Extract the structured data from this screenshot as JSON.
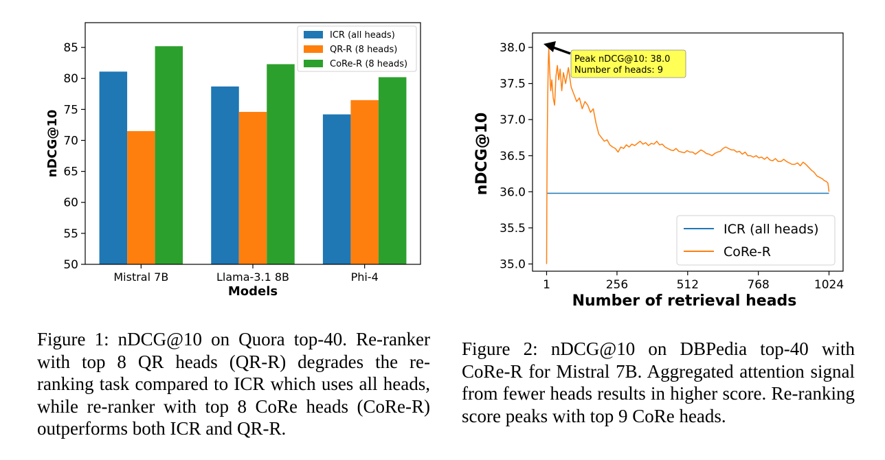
{
  "figure1": {
    "chart_data": {
      "type": "bar",
      "categories": [
        "Mistral 7B",
        "Llama-3.1 8B",
        "Phi-4"
      ],
      "series": [
        {
          "name": "ICR (all heads)",
          "values": [
            81.1,
            78.7,
            74.2
          ]
        },
        {
          "name": "QR-R (8 heads)",
          "values": [
            71.5,
            74.6,
            76.5
          ]
        },
        {
          "name": "CoRe-R (8 heads)",
          "values": [
            85.2,
            82.3,
            80.2
          ]
        }
      ],
      "xlabel": "Models",
      "ylabel": "nDCG@10",
      "ylim": [
        50,
        89
      ],
      "yticks": [
        50,
        55,
        60,
        65,
        70,
        75,
        80,
        85
      ],
      "legend_position": "top-right",
      "colors": [
        "#1f77b4",
        "#ff7f0e",
        "#2ca02c"
      ],
      "grid": false
    },
    "caption": "Figure 1: nDCG@10 on Quora top-40. Re-ranker with top 8 QR heads (QR-R) degrades the re-ranking task compared to ICR which uses all heads, while re-ranker with top 8 CoRe heads (CoRe-R) outperforms both ICR and QR-R."
  },
  "figure2": {
    "chart_data": {
      "type": "line",
      "xlabel": "Number of retrieval heads",
      "ylabel": "nDCG@10",
      "xticks": [
        1,
        256,
        512,
        768,
        1024
      ],
      "yticks": [
        35.0,
        35.5,
        36.0,
        36.5,
        37.0,
        37.5,
        38.0
      ],
      "xlim": [
        -50,
        1075
      ],
      "ylim": [
        34.9,
        38.2
      ],
      "legend_position": "lower-right",
      "grid": false,
      "series": [
        {
          "name": "ICR (all heads)",
          "color": "#1f77b4",
          "x": [
            1,
            1024
          ],
          "y": [
            35.98,
            35.98
          ]
        },
        {
          "name": "CoRe-R",
          "color": "#ff7f0e",
          "x": [
            1,
            2,
            3,
            5,
            7,
            9,
            12,
            16,
            20,
            25,
            30,
            35,
            40,
            45,
            50,
            56,
            62,
            70,
            80,
            90,
            100,
            110,
            120,
            130,
            140,
            150,
            160,
            170,
            180,
            190,
            200,
            210,
            220,
            230,
            240,
            250,
            260,
            270,
            280,
            290,
            300,
            310,
            320,
            330,
            340,
            350,
            360,
            370,
            380,
            390,
            400,
            410,
            420,
            430,
            440,
            450,
            460,
            470,
            480,
            490,
            500,
            510,
            520,
            530,
            540,
            550,
            560,
            570,
            580,
            590,
            600,
            610,
            620,
            630,
            640,
            650,
            660,
            670,
            680,
            690,
            700,
            710,
            720,
            730,
            740,
            750,
            760,
            770,
            780,
            790,
            800,
            810,
            820,
            830,
            840,
            850,
            860,
            870,
            880,
            890,
            900,
            910,
            920,
            930,
            940,
            950,
            960,
            970,
            980,
            990,
            1000,
            1005,
            1010,
            1015,
            1020,
            1024
          ],
          "y": [
            35.0,
            35.9,
            36.6,
            37.3,
            37.75,
            38.0,
            37.7,
            37.4,
            37.55,
            37.3,
            37.2,
            37.6,
            37.75,
            37.55,
            37.7,
            37.4,
            37.65,
            37.5,
            37.72,
            37.45,
            37.35,
            37.25,
            37.3,
            37.15,
            37.25,
            37.2,
            37.1,
            37.15,
            36.95,
            36.8,
            36.75,
            36.7,
            36.72,
            36.65,
            36.62,
            36.6,
            36.55,
            36.62,
            36.6,
            36.65,
            36.62,
            36.66,
            36.64,
            36.67,
            36.7,
            36.66,
            36.68,
            36.64,
            36.67,
            36.66,
            36.7,
            36.65,
            36.66,
            36.62,
            36.6,
            36.58,
            36.57,
            36.6,
            36.56,
            36.55,
            36.54,
            36.57,
            36.55,
            36.55,
            36.52,
            36.55,
            36.58,
            36.56,
            36.53,
            36.52,
            36.5,
            36.53,
            36.55,
            36.56,
            36.6,
            36.62,
            36.6,
            36.58,
            36.58,
            36.55,
            36.56,
            36.52,
            36.55,
            36.5,
            36.5,
            36.48,
            36.5,
            36.47,
            36.48,
            36.45,
            36.48,
            36.44,
            36.43,
            36.46,
            36.42,
            36.42,
            36.45,
            36.42,
            36.4,
            36.38,
            36.38,
            36.4,
            36.36,
            36.41,
            36.38,
            36.34,
            36.3,
            36.27,
            36.22,
            36.2,
            36.18,
            36.16,
            36.15,
            36.14,
            36.12,
            36.0
          ]
        }
      ],
      "annotation": {
        "text_line1": "Peak nDCG@10: 38.0",
        "text_line2": "Number of heads: 9",
        "x": 9,
        "y": 38.0,
        "box_color": "#ffff55"
      }
    },
    "caption": "Figure 2: nDCG@10 on DBPedia top-40 with CoRe-R for Mistral 7B. Aggregated attention signal from fewer heads results in higher score. Re-ranking score peaks with top 9 CoRe heads."
  }
}
